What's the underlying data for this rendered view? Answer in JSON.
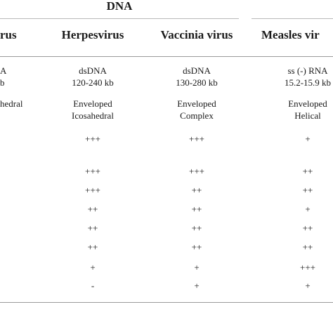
{
  "table": {
    "group_header": "DNA",
    "columns": [
      {
        "name": "Herpesvirus",
        "genome_type": "dsDNA",
        "genome_size": "120-240 kb",
        "envelope": "Enveloped",
        "capsid": "Icosahedral",
        "values": [
          "+++",
          "+++",
          "+++",
          "++",
          "++",
          "++",
          "+",
          "-"
        ]
      },
      {
        "name": "Vaccinia virus",
        "genome_type": "dsDNA",
        "genome_size": "130-280 kb",
        "envelope": "Enveloped",
        "capsid": "Complex",
        "values": [
          "+++",
          "+++",
          "++",
          "++",
          "++",
          "++",
          "+",
          "+"
        ]
      },
      {
        "name": "Measles vir",
        "genome_type": "ss (-) RNA",
        "genome_size": "15.2-15.9 kb",
        "envelope": "Enveloped",
        "capsid": "Helical",
        "values": [
          "+",
          "++",
          "++",
          "+",
          "++",
          "++",
          "+++",
          "+"
        ]
      }
    ],
    "left_partial": {
      "header": "rus",
      "genome_type": "A",
      "genome_size": "b",
      "envelope": "hedral"
    }
  }
}
